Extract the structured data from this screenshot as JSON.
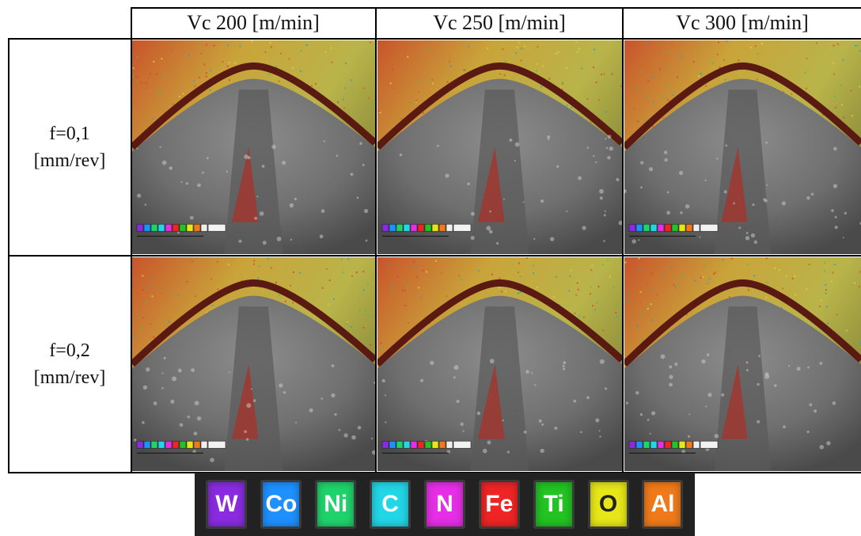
{
  "columns": [
    {
      "label": "Vc 200 [m/min]"
    },
    {
      "label": "Vc 250 [m/min]"
    },
    {
      "label": "Vc 300 [m/min]"
    }
  ],
  "rows": [
    {
      "line1": "f=0,1",
      "line2": "[mm/rev]"
    },
    {
      "line1": "f=0,2",
      "line2": "[mm/rev]"
    }
  ],
  "legend": [
    {
      "symbol": "W",
      "color": "#8a2be2"
    },
    {
      "symbol": "Co",
      "color": "#1e90ff"
    },
    {
      "symbol": "Ni",
      "color": "#1fd36b"
    },
    {
      "symbol": "C",
      "color": "#22d6e6"
    },
    {
      "symbol": "N",
      "color": "#e62ee6"
    },
    {
      "symbol": "Fe",
      "color": "#ef2424"
    },
    {
      "symbol": "Ti",
      "color": "#22c322"
    },
    {
      "symbol": "O",
      "color": "#e6e619"
    },
    {
      "symbol": "Al",
      "color": "#f07a1a"
    }
  ]
}
